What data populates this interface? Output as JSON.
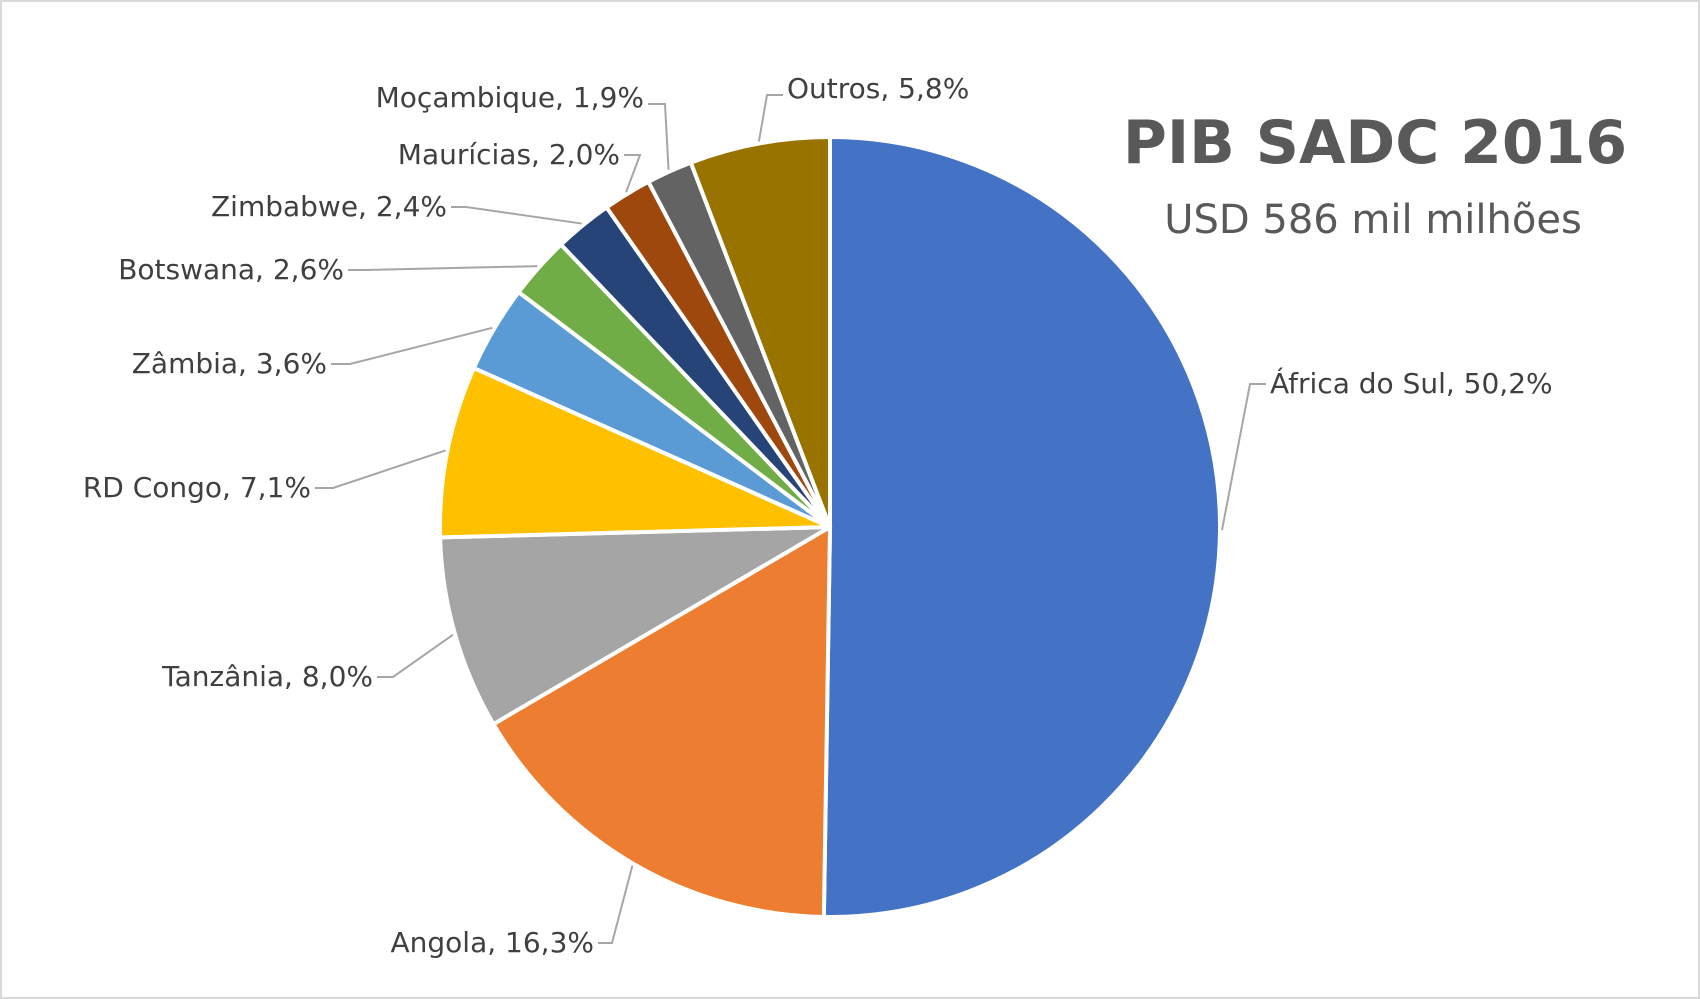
{
  "chart_data": {
    "type": "pie",
    "title": "PIB SADC 2016",
    "subtitle": "USD 586 mil milhões",
    "slices": [
      {
        "label": "África do Sul, 50,2%",
        "value": 50.2,
        "color": "#4472C4"
      },
      {
        "label": "Angola, 16,3%",
        "value": 16.3,
        "color": "#ED7D31"
      },
      {
        "label": "Tanzânia, 8,0%",
        "value": 8.0,
        "color": "#A5A5A5"
      },
      {
        "label": "RD Congo, 7,1%",
        "value": 7.1,
        "color": "#FFC000"
      },
      {
        "label": "Zâmbia, 3,6%",
        "value": 3.6,
        "color": "#5B9BD5"
      },
      {
        "label": "Botswana, 2,6%",
        "value": 2.6,
        "color": "#70AD47"
      },
      {
        "label": "Zimbabwe, 2,4%",
        "value": 2.4,
        "color": "#264478"
      },
      {
        "label": "Maurícias, 2,0%",
        "value": 2.0,
        "color": "#9E480E"
      },
      {
        "label": "Moçambique, 1,9%",
        "value": 1.9,
        "color": "#636363"
      },
      {
        "label": "Outros, 5,8%",
        "value": 5.8,
        "color": "#997300"
      }
    ],
    "legend": "none",
    "data_labels": "outside-with-leader-lines"
  }
}
